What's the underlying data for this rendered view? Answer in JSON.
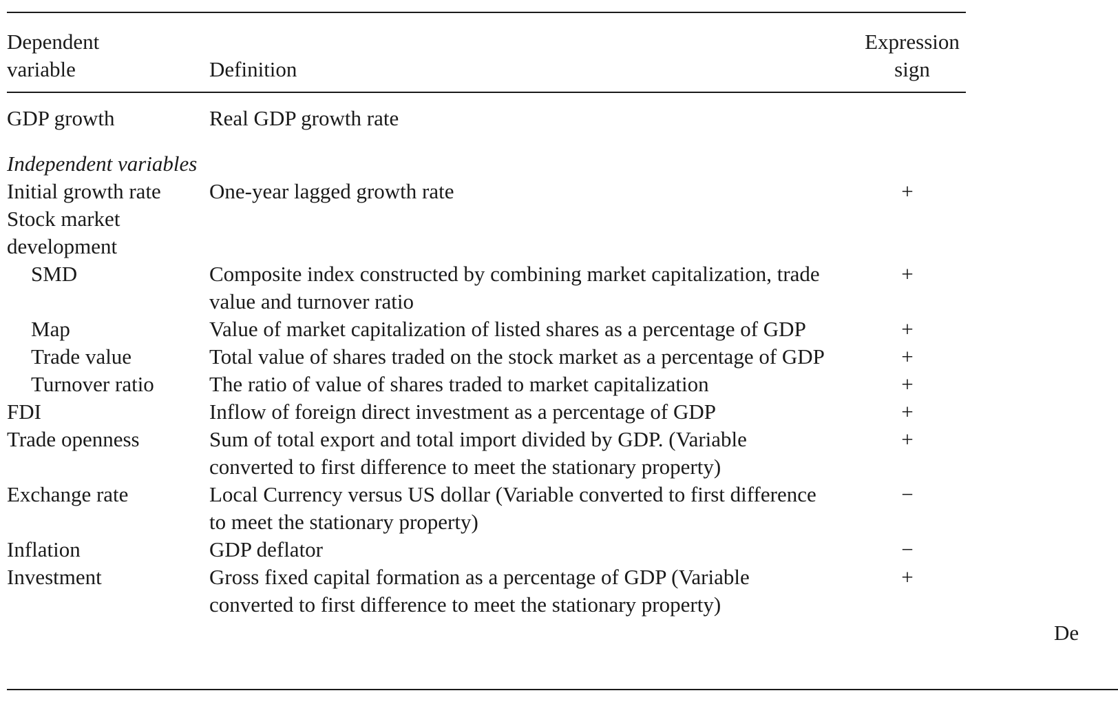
{
  "header": {
    "dependent": "Dependent variable",
    "definition": "Definition",
    "sign": "Expression sign"
  },
  "dependent_row": {
    "variable": "GDP growth",
    "definition": "Real GDP growth rate",
    "sign": ""
  },
  "section_label": "Independent variables",
  "rows": [
    {
      "variable": "Initial growth rate",
      "definition": "One-year lagged growth rate",
      "sign": "+",
      "indent": false
    },
    {
      "variable": "Stock market development",
      "definition": "",
      "sign": "",
      "indent": false
    },
    {
      "variable": "SMD",
      "definition": "Composite index constructed by combining market capitalization, trade value and turnover ratio",
      "sign": "+",
      "indent": true
    },
    {
      "variable": "Map",
      "definition": "Value of market capitalization of listed shares as a percentage of GDP",
      "sign": "+",
      "indent": true
    },
    {
      "variable": "Trade value",
      "definition": "Total value of shares traded on the stock market as a percentage of GDP",
      "sign": "+",
      "indent": true
    },
    {
      "variable": "Turnover ratio",
      "definition": "The ratio of value of shares traded to market capitalization",
      "sign": "+",
      "indent": true
    },
    {
      "variable": "FDI",
      "definition": "Inflow of foreign direct investment as a percentage of GDP",
      "sign": "+",
      "indent": false
    },
    {
      "variable": "Trade openness",
      "definition": "Sum of total export and total import divided by GDP. (Variable converted to first difference to meet the stationary property)",
      "sign": "+",
      "indent": false
    },
    {
      "variable": "Exchange rate",
      "definition": "Local Currency versus US dollar (Variable converted to first difference to meet the stationary property)",
      "sign": "−",
      "indent": false
    },
    {
      "variable": "Inflation",
      "definition": "GDP deflator",
      "sign": "−",
      "indent": false
    },
    {
      "variable": "Investment",
      "definition": "Gross fixed capital formation as a percentage of GDP (Variable converted to first difference to meet the stationary property)",
      "sign": "+",
      "indent": false
    }
  ],
  "margin_note": "De"
}
